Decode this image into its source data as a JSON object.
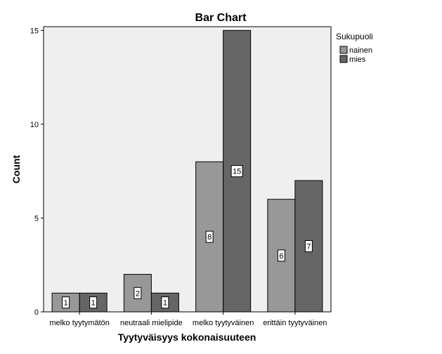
{
  "chart_data": {
    "type": "bar",
    "title": "Bar Chart",
    "xlabel": "Tyytyväisyys kokonaisuuteen",
    "ylabel": "Count",
    "categories": [
      "melko tyytymätön",
      "neutraali mielipide",
      "melko tyytyväinen",
      "erittäin tyytyväinen"
    ],
    "series": [
      {
        "name": "nainen",
        "values": [
          1,
          2,
          8,
          6
        ],
        "color": "#989898"
      },
      {
        "name": "mies",
        "values": [
          1,
          1,
          15,
          7
        ],
        "color": "#666666"
      }
    ],
    "data_labels": {
      "nainen": [
        "1",
        "2",
        "8",
        "6"
      ],
      "mies": [
        "1",
        "1",
        "15",
        "7"
      ]
    },
    "ylim": [
      0,
      15.2
    ],
    "yticks": [
      "0",
      "5",
      "10",
      "15"
    ],
    "legend": {
      "title": "Sukupuoli",
      "position": "right"
    },
    "grid": false,
    "plot_background": "#efefef"
  }
}
